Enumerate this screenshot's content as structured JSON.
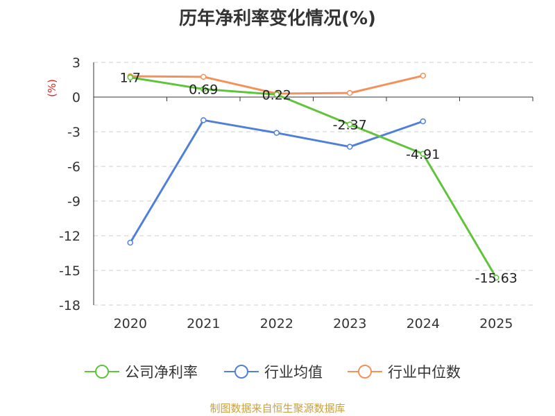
{
  "title": "历年净利率变化情况(%)",
  "footer": "制图数据来自恒生聚源数据库",
  "chart_data": {
    "type": "line",
    "title": "历年净利率变化情况(%)",
    "ylabel": "(%)",
    "categories": [
      "2020",
      "2021",
      "2022",
      "2023",
      "2024",
      "2025"
    ],
    "ylim": [
      -18,
      3
    ],
    "yticks": [
      3,
      0,
      -3,
      -6,
      -9,
      -12,
      -15,
      -18
    ],
    "grid": true,
    "legend_position": "bottom",
    "series": [
      {
        "name": "公司净利率",
        "color": "#5ec43a",
        "values": [
          1.7,
          0.69,
          0.22,
          -2.37,
          -4.91,
          -15.63
        ],
        "labels": [
          "1.7",
          "0.69",
          "0.22",
          "-2.37",
          "-4.91",
          "-15.63"
        ]
      },
      {
        "name": "行业均值",
        "color": "#4f7fd9",
        "values": [
          -12.6,
          -2.0,
          -3.1,
          -4.3,
          -2.1,
          null
        ],
        "labels": null
      },
      {
        "name": "行业中位数",
        "color": "#f39159",
        "values": [
          1.8,
          1.75,
          0.3,
          0.35,
          1.85,
          null
        ],
        "labels": null
      }
    ]
  }
}
